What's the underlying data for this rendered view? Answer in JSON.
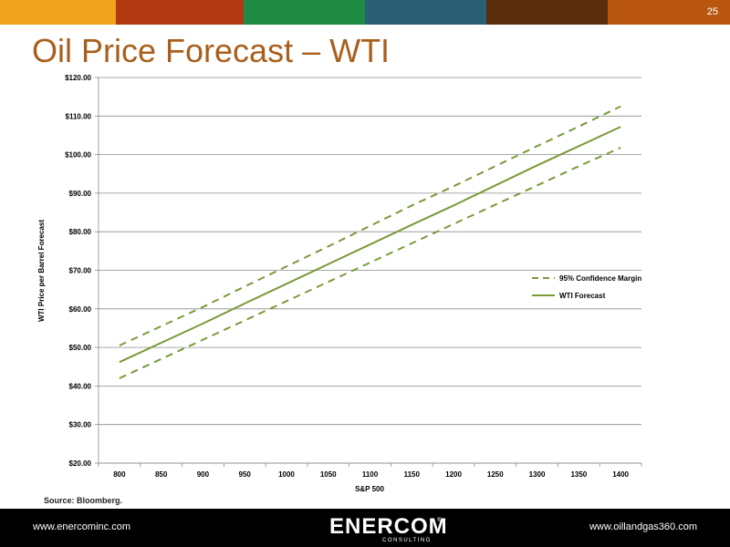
{
  "slide": {
    "page_number": "25",
    "title": "Oil Price Forecast – WTI",
    "source": "Source: Bloomberg.",
    "top_bar_colors": [
      "#f0a31c",
      "#b23a12",
      "#1f8a44",
      "#2a5f74",
      "#5a2c0c",
      "#b8560f"
    ]
  },
  "footer": {
    "left_url": "www.enercominc.com",
    "right_url": "www.oillandgas360.com",
    "logo_text": "ENERCOM",
    "logo_sub": "CONSULTING",
    "logo_mark": "®"
  },
  "chart_data": {
    "type": "line",
    "title": "",
    "xlabel": "S&P 500",
    "ylabel": "WTI Price per Barrel Forecast",
    "x": [
      800,
      850,
      900,
      950,
      1000,
      1050,
      1100,
      1150,
      1200,
      1250,
      1300,
      1350,
      1400
    ],
    "x_ticks": [
      "800",
      "850",
      "900",
      "950",
      "1000",
      "1050",
      "1100",
      "1150",
      "1200",
      "1250",
      "1300",
      "1350",
      "1400"
    ],
    "ylim": [
      20,
      120
    ],
    "y_ticks": [
      "$20.00",
      "$30.00",
      "$40.00",
      "$50.00",
      "$60.00",
      "$70.00",
      "$80.00",
      "$90.00",
      "$100.00",
      "$110.00",
      "$120.00"
    ],
    "grid": true,
    "legend_position": "right",
    "series": [
      {
        "name": "95% Confidence Margin",
        "style": "dashed",
        "color": "#7a9a3a",
        "values": [
          50.5,
          55.5,
          60.5,
          65.8,
          71.0,
          76.2,
          81.5,
          86.8,
          91.8,
          97.0,
          102.2,
          107.3,
          112.5
        ]
      },
      {
        "name": "",
        "style": "dashed",
        "color": "#7a9a3a",
        "legend": false,
        "values": [
          42.0,
          47.0,
          52.0,
          57.0,
          62.0,
          67.0,
          72.0,
          77.0,
          82.0,
          87.0,
          92.0,
          97.0,
          101.8
        ]
      },
      {
        "name": "WTI Forecast",
        "style": "solid",
        "color": "#7a9a3a",
        "values": [
          46.2,
          51.2,
          56.2,
          61.4,
          66.5,
          71.6,
          76.7,
          81.8,
          86.8,
          92.0,
          97.2,
          102.2,
          107.2
        ]
      }
    ]
  }
}
